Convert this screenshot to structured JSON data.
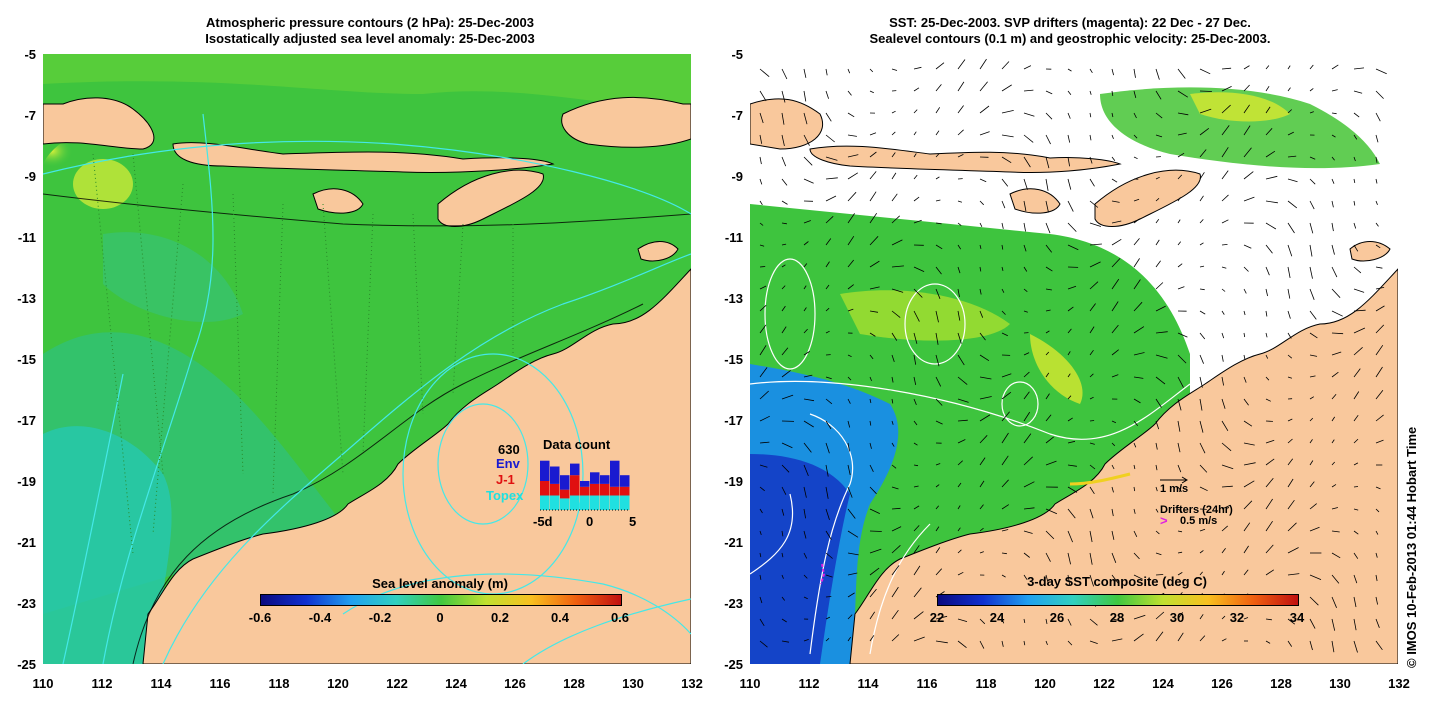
{
  "left_panel": {
    "title_line1": "Atmospheric pressure contours (2 hPa): 25-Dec-2003",
    "title_line2": "Isostatically adjusted sea level anomaly: 25-Dec-2003",
    "y_ticks": [
      "-5",
      "-7",
      "-9",
      "-11",
      "-13",
      "-15",
      "-17",
      "-19",
      "-21",
      "-23",
      "-25"
    ],
    "x_ticks": [
      "110",
      "112",
      "114",
      "116",
      "118",
      "120",
      "122",
      "124",
      "126",
      "128",
      "130",
      "132"
    ],
    "colorbar": {
      "label": "Sea level anomaly (m)",
      "ticks": [
        "-0.6",
        "-0.4",
        "-0.2",
        "0",
        "0.2",
        "0.4",
        "0.6"
      ]
    },
    "data_count": {
      "title": "Data count",
      "total": "630",
      "legend": [
        {
          "name": "Env",
          "color": "#1a1ad0"
        },
        {
          "name": "J-1",
          "color": "#e01010"
        },
        {
          "name": "Topex",
          "color": "#20e0e0"
        }
      ],
      "axis_ticks": [
        "-5d",
        "0",
        "5"
      ],
      "bars": [
        {
          "topex": 0.25,
          "j1": 0.25,
          "env": 0.35
        },
        {
          "topex": 0.25,
          "j1": 0.2,
          "env": 0.3
        },
        {
          "topex": 0.2,
          "j1": 0.15,
          "env": 0.25
        },
        {
          "topex": 0.25,
          "j1": 0.35,
          "env": 0.2
        },
        {
          "topex": 0.25,
          "j1": 0.15,
          "env": 0.1
        },
        {
          "topex": 0.25,
          "j1": 0.2,
          "env": 0.2
        },
        {
          "topex": 0.25,
          "j1": 0.2,
          "env": 0.15
        },
        {
          "topex": 0.25,
          "j1": 0.15,
          "env": 0.45
        },
        {
          "topex": 0.25,
          "j1": 0.15,
          "env": 0.2
        }
      ]
    }
  },
  "right_panel": {
    "title_line1": "SST: 25-Dec-2003. SVP drifters (magenta): 22 Dec - 27 Dec.",
    "title_line2": "Sealevel contours (0.1 m) and geostrophic velocity: 25-Dec-2003.",
    "y_ticks": [
      "-5",
      "-7",
      "-9",
      "-11",
      "-13",
      "-15",
      "-17",
      "-19",
      "-21",
      "-23",
      "-25"
    ],
    "x_ticks": [
      "110",
      "112",
      "114",
      "116",
      "118",
      "120",
      "122",
      "124",
      "126",
      "128",
      "130",
      "132"
    ],
    "colorbar": {
      "label": "3-day SST composite (deg C)",
      "ticks": [
        "22",
        "24",
        "26",
        "28",
        "30",
        "32",
        "34"
      ]
    },
    "velocity_key": "1 m/s",
    "drifters_label": "Drifters (24hr)",
    "drifter_speed": "0.5 m/s"
  },
  "credit": "© IMOS 10-Feb-2013 01:44 Hobart Time",
  "colors": {
    "land": "#f9c89c",
    "sea_green": "#3fc63f",
    "sea_teal": "#25c79a",
    "magenta": "#e020e0"
  }
}
